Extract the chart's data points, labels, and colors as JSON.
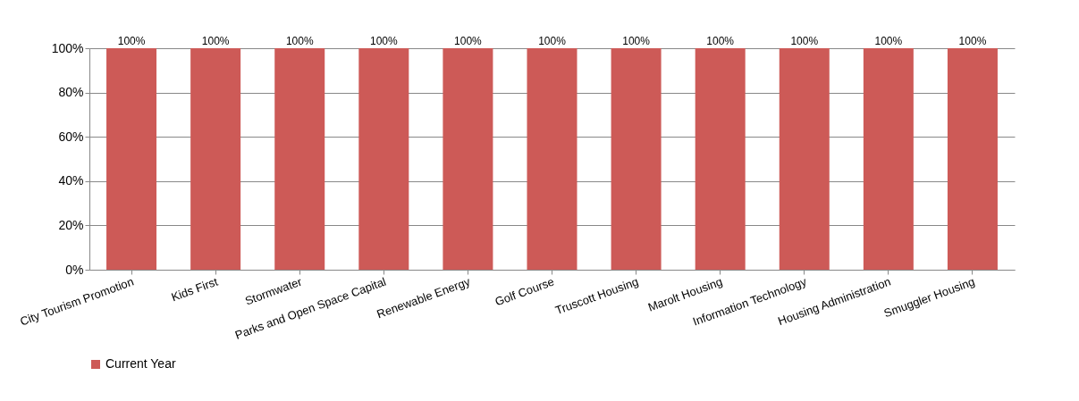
{
  "chart_data": {
    "type": "bar",
    "categories": [
      "City Tourism Promotion",
      "Kids First",
      "Stormwater",
      "Parks and Open Space Capital",
      "Renewable Energy",
      "Golf Course",
      "Truscott Housing",
      "Marolt Housing",
      "Information Technology",
      "Housing Administration",
      "Smuggler Housing"
    ],
    "series": [
      {
        "name": "Current Year",
        "color": "#cd5a57",
        "values": [
          100,
          100,
          100,
          100,
          100,
          100,
          100,
          100,
          100,
          100,
          100
        ]
      }
    ],
    "value_labels": [
      "100%",
      "100%",
      "100%",
      "100%",
      "100%",
      "100%",
      "100%",
      "100%",
      "100%",
      "100%",
      "100%"
    ],
    "ylim": [
      0,
      100
    ],
    "yticks": [
      {
        "value": 0,
        "label": "0%"
      },
      {
        "value": 20,
        "label": "20%"
      },
      {
        "value": 40,
        "label": "40%"
      },
      {
        "value": 60,
        "label": "60%"
      },
      {
        "value": 80,
        "label": "80%"
      },
      {
        "value": 100,
        "label": "100%"
      }
    ],
    "grid": "y",
    "legend": "bottom"
  }
}
